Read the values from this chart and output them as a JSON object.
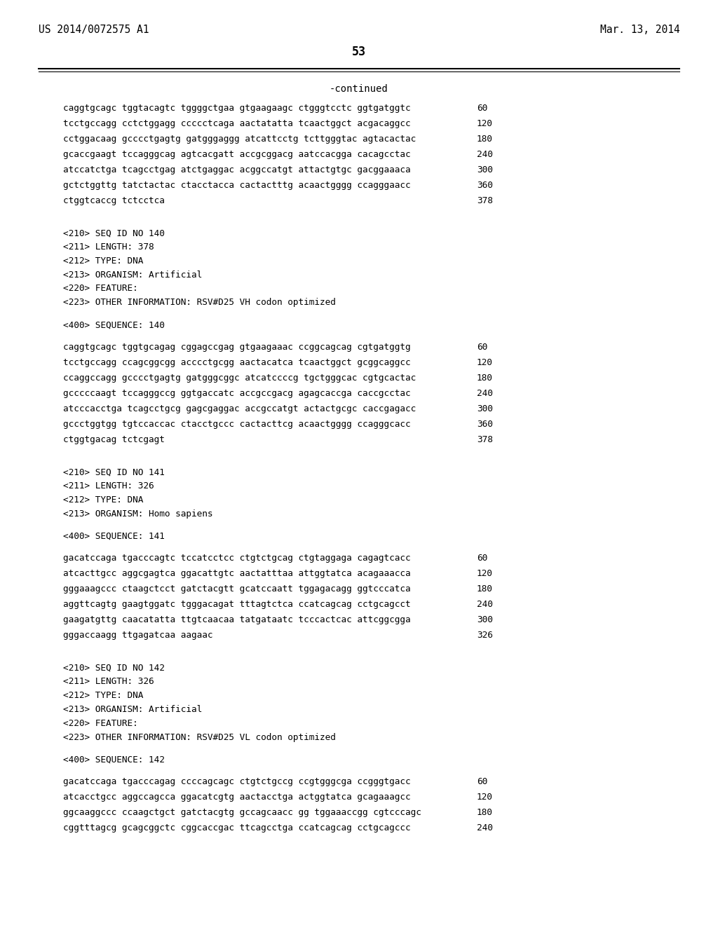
{
  "bg_color": "#ffffff",
  "header_left": "US 2014/0072575 A1",
  "header_right": "Mar. 13, 2014",
  "page_number": "53",
  "continued_label": "-continued",
  "lines": [
    {
      "type": "sequence",
      "text": "caggtgcagc tggtacagtc tggggctgaa gtgaagaagc ctgggtcctc ggtgatggtc",
      "num": "60"
    },
    {
      "type": "sequence",
      "text": "tcctgccagg cctctggagg ccccctcaga aactatatta tcaactggct acgacaggcc",
      "num": "120"
    },
    {
      "type": "sequence",
      "text": "cctggacaag gcccctgagtg gatgggaggg atcattcctg tcttgggtac agtacactac",
      "num": "180"
    },
    {
      "type": "sequence",
      "text": "gcaccgaagt tccagggcag agtcacgatt accgcggacg aatccacgga cacagcctac",
      "num": "240"
    },
    {
      "type": "sequence",
      "text": "atccatctga tcagcctgag atctgaggac acggccatgt attactgtgc gacggaaaca",
      "num": "300"
    },
    {
      "type": "sequence",
      "text": "gctctggttg tatctactac ctacctacca cactactttg acaactgggg ccagggaacc",
      "num": "360"
    },
    {
      "type": "sequence",
      "text": "ctggtcaccg tctcctca",
      "num": "378"
    },
    {
      "type": "blank"
    },
    {
      "type": "blank"
    },
    {
      "type": "meta",
      "text": "<210> SEQ ID NO 140"
    },
    {
      "type": "meta",
      "text": "<211> LENGTH: 378"
    },
    {
      "type": "meta",
      "text": "<212> TYPE: DNA"
    },
    {
      "type": "meta",
      "text": "<213> ORGANISM: Artificial"
    },
    {
      "type": "meta",
      "text": "<220> FEATURE:"
    },
    {
      "type": "meta",
      "text": "<223> OTHER INFORMATION: RSV#D25 VH codon optimized"
    },
    {
      "type": "blank"
    },
    {
      "type": "meta",
      "text": "<400> SEQUENCE: 140"
    },
    {
      "type": "blank"
    },
    {
      "type": "sequence",
      "text": "caggtgcagc tggtgcagag cggagccgag gtgaagaaac ccggcagcag cgtgatggtg",
      "num": "60"
    },
    {
      "type": "sequence",
      "text": "tcctgccagg ccagcggcgg acccctgcgg aactacatca tcaactggct gcggcaggcc",
      "num": "120"
    },
    {
      "type": "sequence",
      "text": "ccaggccagg gcccctgagtg gatgggcggc atcatccccg tgctgggcac cgtgcactac",
      "num": "180"
    },
    {
      "type": "sequence",
      "text": "gcccccaagt tccagggccg ggtgaccatc accgccgacg agagcaccga caccgcctac",
      "num": "240"
    },
    {
      "type": "sequence",
      "text": "atcccacctga tcagcctgcg gagcgaggac accgccatgt actactgcgc caccgagacc",
      "num": "300"
    },
    {
      "type": "sequence",
      "text": "gccctggtgg tgtccaccac ctacctgccc cactacttcg acaactgggg ccagggcacc",
      "num": "360"
    },
    {
      "type": "sequence",
      "text": "ctggtgacag tctcgagt",
      "num": "378"
    },
    {
      "type": "blank"
    },
    {
      "type": "blank"
    },
    {
      "type": "meta",
      "text": "<210> SEQ ID NO 141"
    },
    {
      "type": "meta",
      "text": "<211> LENGTH: 326"
    },
    {
      "type": "meta",
      "text": "<212> TYPE: DNA"
    },
    {
      "type": "meta",
      "text": "<213> ORGANISM: Homo sapiens"
    },
    {
      "type": "blank"
    },
    {
      "type": "meta",
      "text": "<400> SEQUENCE: 141"
    },
    {
      "type": "blank"
    },
    {
      "type": "sequence",
      "text": "gacatccaga tgacccagtc tccatcctcc ctgtctgcag ctgtaggaga cagagtcacc",
      "num": "60"
    },
    {
      "type": "sequence",
      "text": "atcacttgcc aggcgagtca ggacattgtc aactatttaa attggtatca acagaaacca",
      "num": "120"
    },
    {
      "type": "sequence",
      "text": "gggaaagccc ctaagctcct gatctacgtt gcatccaatt tggagacagg ggtcccatca",
      "num": "180"
    },
    {
      "type": "sequence",
      "text": "aggttcagtg gaagtggatc tgggacagat tttagtctca ccatcagcag cctgcagcct",
      "num": "240"
    },
    {
      "type": "sequence",
      "text": "gaagatgttg caacatatta ttgtcaacaa tatgataatc tcccactcac attcggcgga",
      "num": "300"
    },
    {
      "type": "sequence",
      "text": "gggaccaagg ttgagatcaa aagaac",
      "num": "326"
    },
    {
      "type": "blank"
    },
    {
      "type": "blank"
    },
    {
      "type": "meta",
      "text": "<210> SEQ ID NO 142"
    },
    {
      "type": "meta",
      "text": "<211> LENGTH: 326"
    },
    {
      "type": "meta",
      "text": "<212> TYPE: DNA"
    },
    {
      "type": "meta",
      "text": "<213> ORGANISM: Artificial"
    },
    {
      "type": "meta",
      "text": "<220> FEATURE:"
    },
    {
      "type": "meta",
      "text": "<223> OTHER INFORMATION: RSV#D25 VL codon optimized"
    },
    {
      "type": "blank"
    },
    {
      "type": "meta",
      "text": "<400> SEQUENCE: 142"
    },
    {
      "type": "blank"
    },
    {
      "type": "sequence",
      "text": "gacatccaga tgacccagag ccccagcagc ctgtctgccg ccgtgggcga ccgggtgacc",
      "num": "60"
    },
    {
      "type": "sequence",
      "text": "atcacctgcc aggccagcca ggacatcgtg aactacctga actggtatca gcagaaagcc",
      "num": "120"
    },
    {
      "type": "sequence",
      "text": "ggcaaggccc ccaagctgct gatctacgtg gccagcaacc gg tggaaaccgg cgtcccagc",
      "num": "180"
    },
    {
      "type": "sequence",
      "text": "cggtttagcg gcagcggctc cggcaccgac ttcagcctga ccatcagcag cctgcagccc",
      "num": "240"
    }
  ]
}
